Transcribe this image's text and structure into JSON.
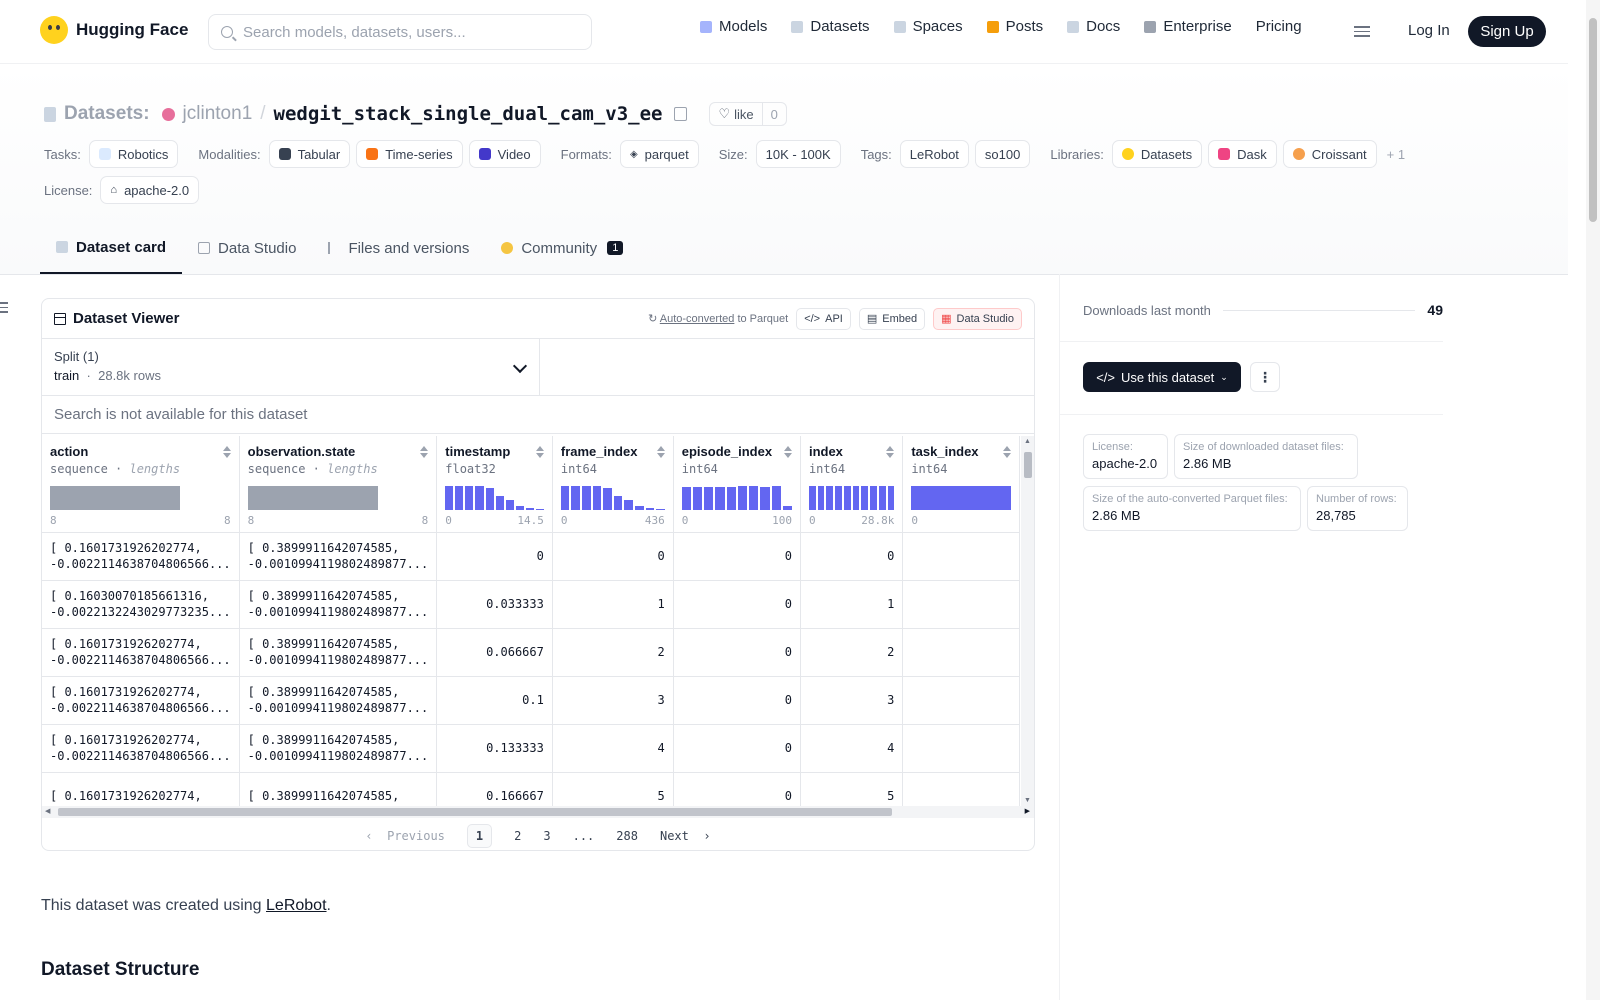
{
  "nav": {
    "brand": "Hugging Face",
    "search_placeholder": "Search models, datasets, users...",
    "links": [
      {
        "label": "Models",
        "icon": "cube-icon",
        "color": "#a5b4fc"
      },
      {
        "label": "Datasets",
        "icon": "database-icon",
        "color": "#cbd5e1"
      },
      {
        "label": "Spaces",
        "icon": "grid-icon",
        "color": "#cbd5e1"
      },
      {
        "label": "Posts",
        "icon": "chat-icon",
        "color": "#f59e0b"
      },
      {
        "label": "Docs",
        "icon": "book-icon",
        "color": "#cbd5e1"
      },
      {
        "label": "Enterprise",
        "icon": "briefcase-icon",
        "color": "#9ca3af"
      },
      {
        "label": "Pricing",
        "icon": "",
        "color": ""
      }
    ],
    "login": "Log In",
    "signup": "Sign Up"
  },
  "header": {
    "crumb_label": "Datasets:",
    "owner": "jclinton1",
    "separator": "/",
    "dataset_name": "wedgit_stack_single_dual_cam_v3_ee",
    "like_label": "like",
    "like_count": "0",
    "row1": {
      "tasks_label": "Tasks:",
      "task": "Robotics",
      "modalities_label": "Modalities:",
      "modalities": [
        "Tabular",
        "Time-series",
        "Video"
      ],
      "formats_label": "Formats:",
      "format": "parquet",
      "size_label": "Size:",
      "size": "10K - 100K",
      "tags_label": "Tags:",
      "tags": [
        "LeRobot",
        "so100"
      ],
      "libraries_label": "Libraries:",
      "libraries": [
        "Datasets",
        "Dask",
        "Croissant"
      ],
      "more": "+ 1"
    },
    "license_label": "License:",
    "license": "apache-2.0"
  },
  "tabs": [
    {
      "label": "Dataset card",
      "active": true
    },
    {
      "label": "Data Studio",
      "active": false
    },
    {
      "label": "Files and versions",
      "active": false
    },
    {
      "label": "Community",
      "active": false,
      "badge": "1"
    }
  ],
  "viewer": {
    "title": "Dataset Viewer",
    "autoconverted": "Auto-converted",
    "to_parquet": "to Parquet",
    "api": "API",
    "embed": "Embed",
    "data_studio": "Data Studio",
    "split_label": "Split (1)",
    "split_name": "train",
    "split_rows": "28.8k rows",
    "search_na": "Search is not available for this dataset",
    "columns": [
      {
        "name": "action",
        "dtype": "sequence",
        "extra": "lengths",
        "min": "8",
        "max": "8",
        "kind": "len"
      },
      {
        "name": "observation.state",
        "dtype": "sequence",
        "extra": "lengths",
        "min": "8",
        "max": "8",
        "kind": "len"
      },
      {
        "name": "timestamp",
        "dtype": "float32",
        "extra": "",
        "min": "0",
        "max": "14.5",
        "kind": "hist",
        "hist": [
          1,
          1,
          1,
          1,
          0.92,
          0.6,
          0.42,
          0.18,
          0.08,
          0.04
        ]
      },
      {
        "name": "frame_index",
        "dtype": "int64",
        "extra": "",
        "min": "0",
        "max": "436",
        "kind": "hist",
        "hist": [
          1,
          1,
          1,
          1,
          0.92,
          0.6,
          0.42,
          0.18,
          0.08,
          0.04
        ]
      },
      {
        "name": "episode_index",
        "dtype": "int64",
        "extra": "",
        "min": "0",
        "max": "100",
        "kind": "hist",
        "hist": [
          0.95,
          0.95,
          0.97,
          0.97,
          0.97,
          1,
          1,
          0.97,
          1,
          0.15
        ]
      },
      {
        "name": "index",
        "dtype": "int64",
        "extra": "",
        "min": "0",
        "max": "28.8k",
        "kind": "hist",
        "hist": [
          1,
          1,
          1,
          1,
          1,
          1,
          1,
          1,
          1,
          1
        ]
      },
      {
        "name": "task_index",
        "dtype": "int64",
        "extra": "",
        "min": "0",
        "max": "",
        "kind": "hist",
        "hist": [
          1
        ]
      }
    ],
    "rows": [
      {
        "action": [
          "[ 0.1601731926202774,",
          "-0.0022114638704806566..."
        ],
        "state": [
          "[ 0.3899911642074585,",
          "-0.0010994119802489877..."
        ],
        "timestamp": "0",
        "frame_index": "0",
        "episode_index": "0",
        "index": "0"
      },
      {
        "action": [
          "[ 0.16030070185661316,",
          "-0.0022132243029773235..."
        ],
        "state": [
          "[ 0.3899911642074585,",
          "-0.0010994119802489877..."
        ],
        "timestamp": "0.033333",
        "frame_index": "1",
        "episode_index": "0",
        "index": "1"
      },
      {
        "action": [
          "[ 0.1601731926202774,",
          "-0.0022114638704806566..."
        ],
        "state": [
          "[ 0.3899911642074585,",
          "-0.0010994119802489877..."
        ],
        "timestamp": "0.066667",
        "frame_index": "2",
        "episode_index": "0",
        "index": "2"
      },
      {
        "action": [
          "[ 0.1601731926202774,",
          "-0.0022114638704806566..."
        ],
        "state": [
          "[ 0.3899911642074585,",
          "-0.0010994119802489877..."
        ],
        "timestamp": "0.1",
        "frame_index": "3",
        "episode_index": "0",
        "index": "3"
      },
      {
        "action": [
          "[ 0.1601731926202774,",
          "-0.0022114638704806566..."
        ],
        "state": [
          "[ 0.3899911642074585,",
          "-0.0010994119802489877..."
        ],
        "timestamp": "0.133333",
        "frame_index": "4",
        "episode_index": "0",
        "index": "4"
      },
      {
        "action": [
          "[ 0.1601731926202774,",
          ""
        ],
        "state": [
          "[ 0.3899911642074585,",
          ""
        ],
        "timestamp": "0.166667",
        "frame_index": "5",
        "episode_index": "0",
        "index": "5"
      }
    ],
    "pager": {
      "previous": "Previous",
      "pages": [
        "1",
        "2",
        "3",
        "...",
        "288"
      ],
      "next": "Next"
    }
  },
  "content": {
    "intro_pre": "This dataset was created using ",
    "intro_link": "LeRobot",
    "intro_post": ".",
    "section_title": "Dataset Structure"
  },
  "sidebar": {
    "downloads_label": "Downloads last month",
    "downloads": "49",
    "use_dataset": "Use this dataset",
    "info": [
      {
        "key": "License:",
        "value": "apache-2.0"
      },
      {
        "key": "Size of downloaded dataset files:",
        "value": "2.86 MB"
      },
      {
        "key": "Size of the auto-converted Parquet files:",
        "value": "2.86 MB"
      },
      {
        "key": "Number of rows:",
        "value": "28,785"
      }
    ]
  }
}
